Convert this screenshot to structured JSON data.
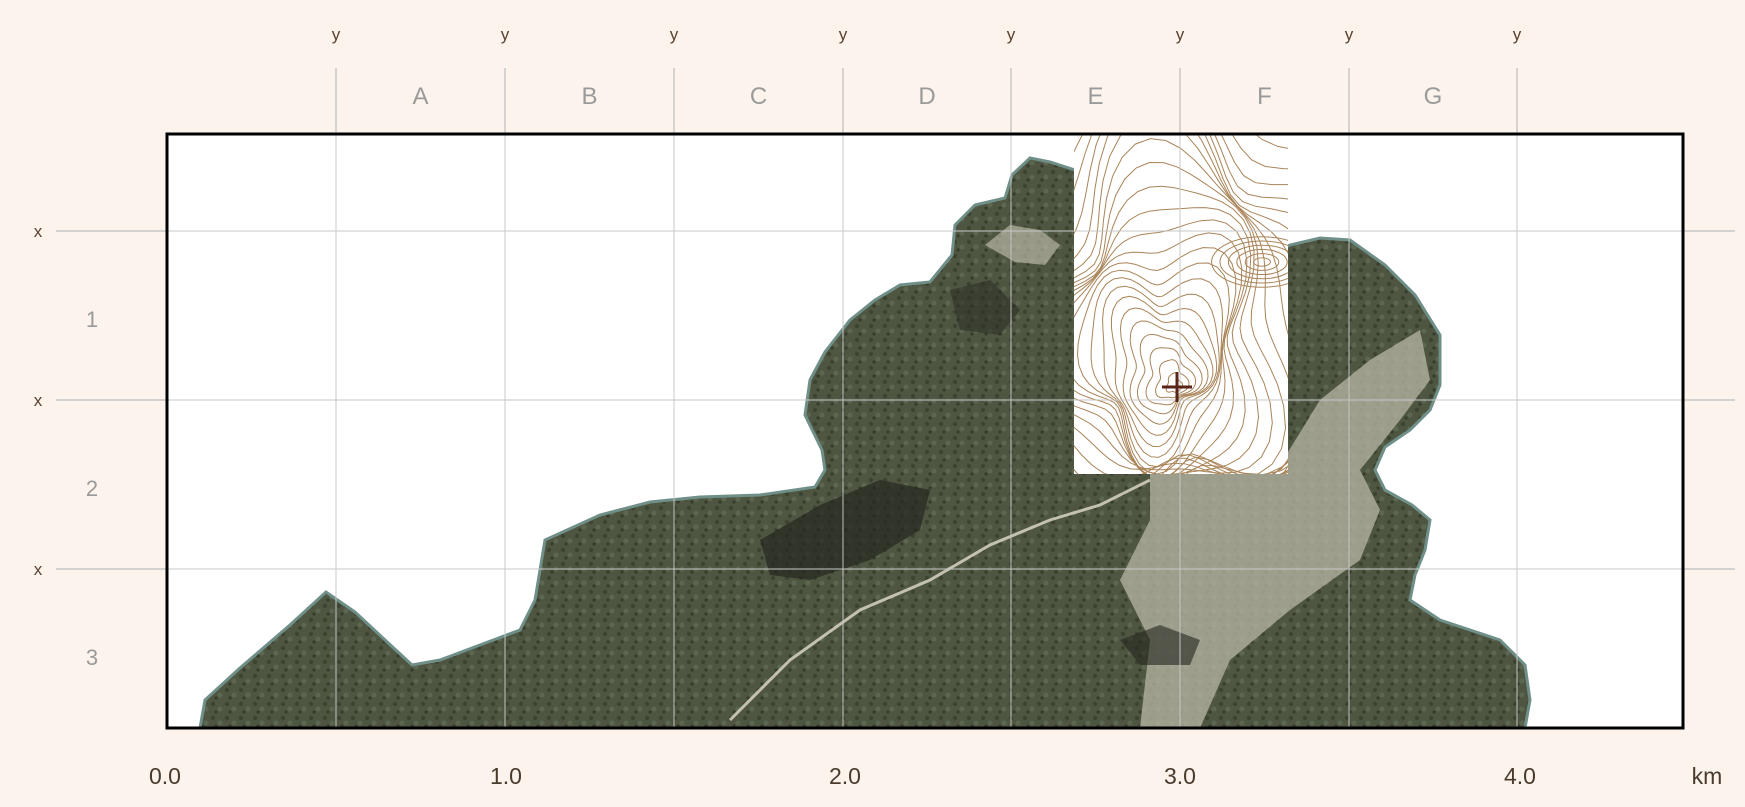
{
  "map": {
    "column_marker": "y",
    "row_marker": "x",
    "columns": [
      "A",
      "B",
      "C",
      "D",
      "E",
      "F",
      "G"
    ],
    "rows": [
      "1",
      "2",
      "3"
    ],
    "scale_ticks": [
      "0.0",
      "1.0",
      "2.0",
      "3.0",
      "4.0"
    ],
    "scale_unit": "km",
    "colors": {
      "background": "#fbf3ec",
      "frame": "#000000",
      "grid": "#c8c8c8",
      "terrain": "#4a523d",
      "contour": "#a98458",
      "marker": "#5a2418"
    },
    "overlay": "contour-lines",
    "marker_icon": "cross-hair-marker"
  }
}
